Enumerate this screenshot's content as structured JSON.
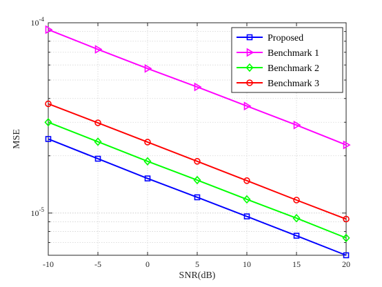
{
  "chart_data": {
    "type": "line",
    "xlabel": "SNR(dB)",
    "ylabel": "MSE",
    "x": [
      -10,
      -5,
      0,
      5,
      10,
      15,
      20
    ],
    "xlim": [
      -10,
      20
    ],
    "xticks": [
      "-10",
      "-5",
      "0",
      "5",
      "10",
      "15",
      "20"
    ],
    "ylim": [
      6e-06,
      0.0001
    ],
    "yscale": "log",
    "yticks": [
      {
        "value": 1e-05,
        "base": "10",
        "exp": "-5"
      },
      {
        "value": 0.0001,
        "base": "10",
        "exp": "-4"
      }
    ],
    "grid": true,
    "legend_position": "top-right",
    "series": [
      {
        "name": "Proposed",
        "color": "#0000ff",
        "marker": "square",
        "values": [
          2.45e-05,
          1.93e-05,
          1.52e-05,
          1.21e-05,
          9.6e-06,
          7.6e-06,
          6e-06
        ]
      },
      {
        "name": "Benchmark 1",
        "color": "#ff00ff",
        "marker": "triangle-right",
        "values": [
          9.2e-05,
          7.25e-05,
          5.75e-05,
          4.6e-05,
          3.65e-05,
          2.9e-05,
          2.28e-05
        ]
      },
      {
        "name": "Benchmark 2",
        "color": "#00ff00",
        "marker": "diamond",
        "values": [
          3e-05,
          2.37e-05,
          1.87e-05,
          1.49e-05,
          1.18e-05,
          9.4e-06,
          7.4e-06
        ]
      },
      {
        "name": "Benchmark 3",
        "color": "#ff0000",
        "marker": "circle",
        "values": [
          3.75e-05,
          2.98e-05,
          2.36e-05,
          1.87e-05,
          1.48e-05,
          1.17e-05,
          9.3e-06
        ]
      }
    ]
  }
}
